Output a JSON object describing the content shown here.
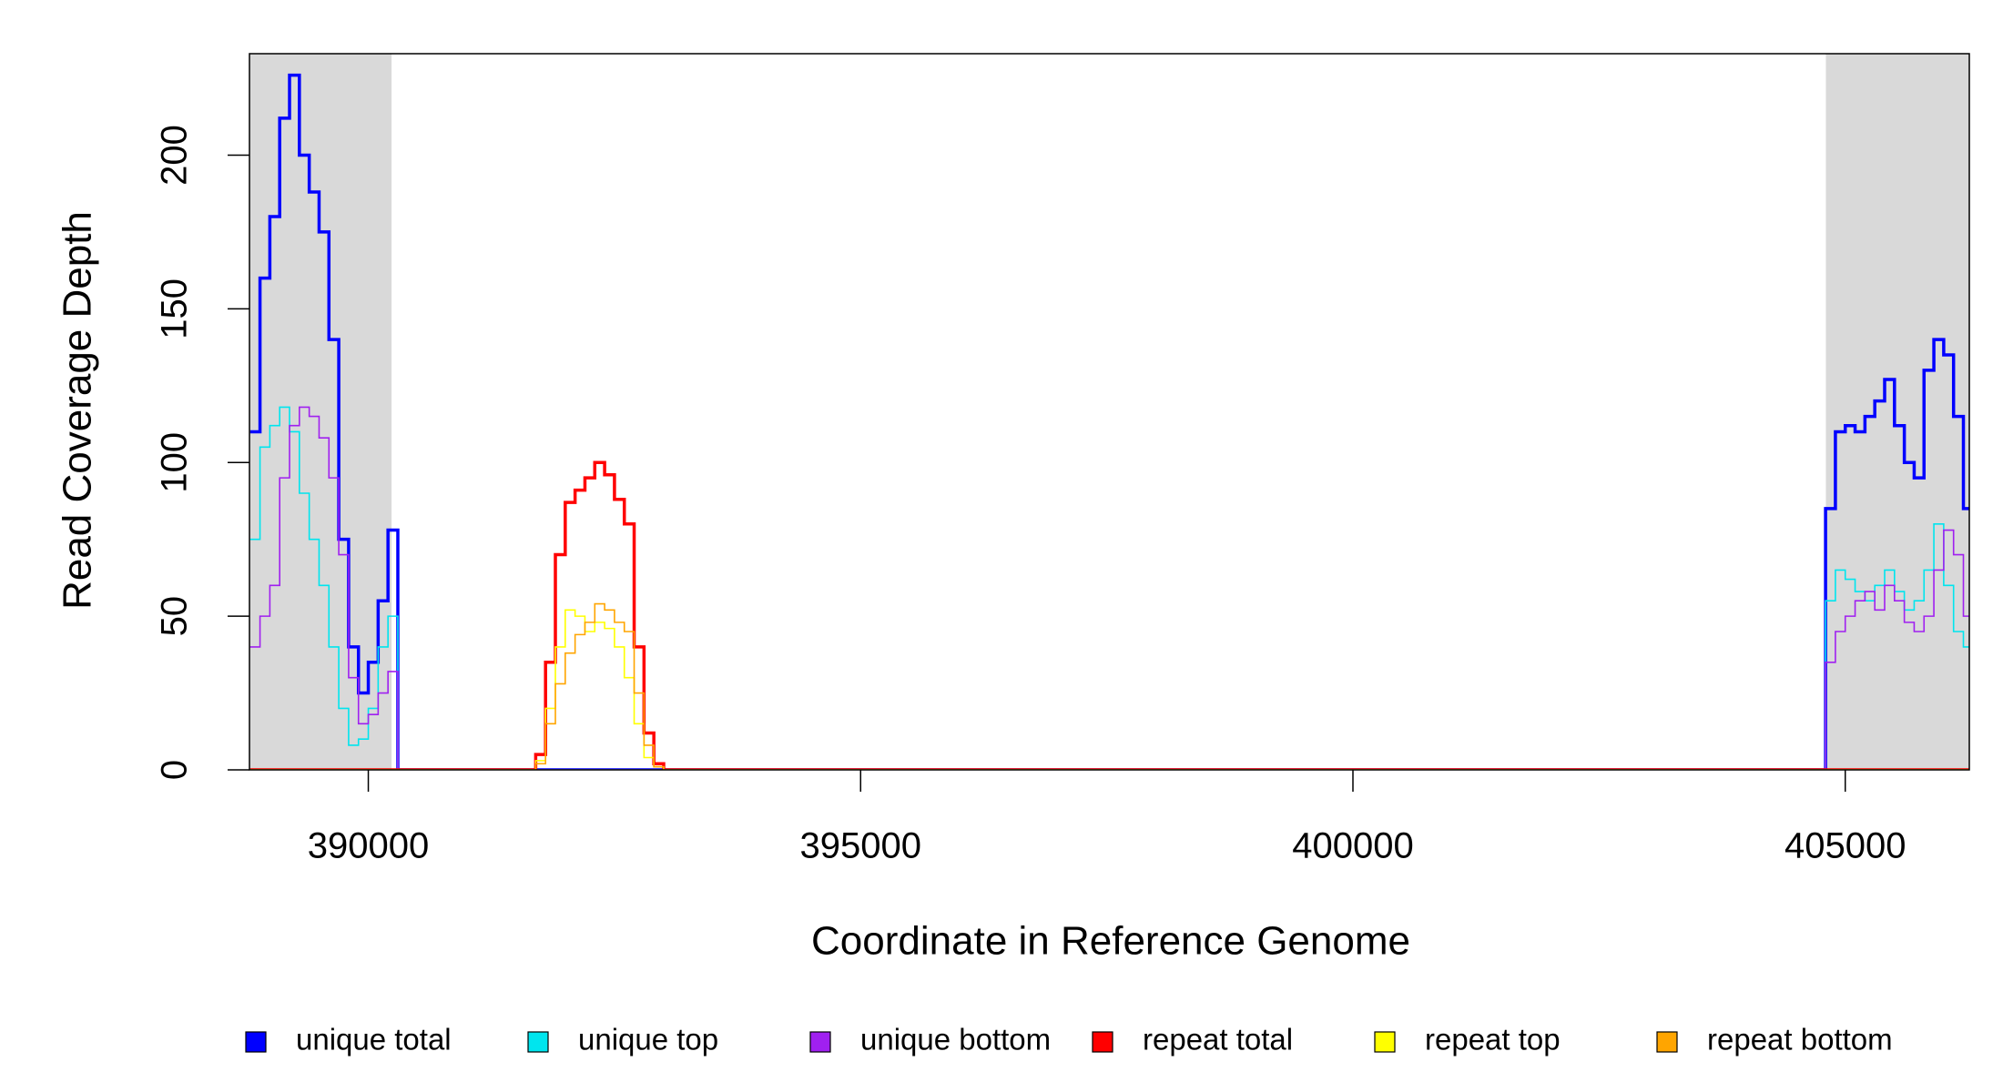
{
  "chart_data": {
    "type": "step",
    "xlabel": "Coordinate in Reference Genome",
    "ylabel": "Read Coverage Depth",
    "xlim": [
      388793,
      406260
    ],
    "ylim": [
      0,
      233
    ],
    "xticks": [
      390000,
      395000,
      400000,
      405000
    ],
    "yticks": [
      0,
      50,
      100,
      150,
      200
    ],
    "shaded_ranges": [
      [
        388793,
        390236
      ],
      [
        404803,
        406260
      ]
    ],
    "shade_color": "#d9d9d9",
    "legend": "bottom",
    "x": [
      388800,
      388900,
      389000,
      389100,
      389200,
      389300,
      389400,
      389500,
      389600,
      389700,
      389800,
      389900,
      390000,
      390100,
      390200,
      390300,
      391700,
      391800,
      391900,
      392000,
      392100,
      392200,
      392300,
      392400,
      392500,
      392600,
      392700,
      392800,
      392900,
      393000,
      393100,
      404800,
      404900,
      405000,
      405100,
      405200,
      405300,
      405400,
      405500,
      405600,
      405700,
      405800,
      405900,
      406000,
      406100,
      406200
    ],
    "series": [
      {
        "name": "unique total",
        "color": "#0000ff",
        "width": 3.5,
        "values": [
          110,
          160,
          180,
          212,
          226,
          200,
          188,
          175,
          140,
          75,
          40,
          25,
          35,
          55,
          78,
          0,
          0,
          0,
          0,
          0,
          0,
          0,
          0,
          0,
          0,
          0,
          0,
          0,
          0,
          0,
          0,
          85,
          110,
          112,
          110,
          115,
          120,
          127,
          112,
          100,
          95,
          130,
          140,
          135,
          115,
          85
        ]
      },
      {
        "name": "unique top",
        "color": "#00e5ee",
        "width": 1.6,
        "values": [
          75,
          105,
          112,
          118,
          110,
          90,
          75,
          60,
          40,
          20,
          8,
          10,
          20,
          40,
          50,
          0,
          0,
          0,
          0,
          0,
          0,
          0,
          0,
          0,
          0,
          0,
          0,
          0,
          0,
          0,
          0,
          55,
          65,
          62,
          58,
          55,
          60,
          65,
          58,
          52,
          55,
          65,
          80,
          60,
          45,
          40
        ]
      },
      {
        "name": "unique bottom",
        "color": "#a020f0",
        "width": 1.6,
        "values": [
          40,
          50,
          60,
          95,
          112,
          118,
          115,
          108,
          95,
          70,
          30,
          15,
          18,
          25,
          32,
          0,
          0,
          0,
          0,
          0,
          0,
          0,
          0,
          0,
          0,
          0,
          0,
          0,
          0,
          0,
          0,
          35,
          45,
          50,
          55,
          58,
          52,
          60,
          55,
          48,
          45,
          50,
          65,
          78,
          70,
          50
        ]
      },
      {
        "name": "repeat total",
        "color": "#ff0000",
        "width": 3.5,
        "values": [
          0,
          0,
          0,
          0,
          0,
          0,
          0,
          0,
          0,
          0,
          0,
          0,
          0,
          0,
          0,
          0,
          5,
          35,
          70,
          87,
          91,
          95,
          100,
          96,
          88,
          80,
          40,
          12,
          2,
          0,
          0,
          0,
          0,
          0,
          0,
          0,
          0,
          0,
          0,
          0,
          0,
          0,
          0,
          0,
          0,
          0
        ]
      },
      {
        "name": "repeat top",
        "color": "#ffff00",
        "width": 1.6,
        "values": [
          0,
          0,
          0,
          0,
          0,
          0,
          0,
          0,
          0,
          0,
          0,
          0,
          0,
          0,
          0,
          0,
          3,
          20,
          40,
          52,
          50,
          45,
          48,
          46,
          40,
          30,
          15,
          4,
          1,
          0,
          0,
          0,
          0,
          0,
          0,
          0,
          0,
          0,
          0,
          0,
          0,
          0,
          0,
          0,
          0,
          0
        ]
      },
      {
        "name": "repeat bottom",
        "color": "#ffa500",
        "width": 1.6,
        "values": [
          0,
          0,
          0,
          0,
          0,
          0,
          0,
          0,
          0,
          0,
          0,
          0,
          0,
          0,
          0,
          0,
          2,
          15,
          28,
          38,
          44,
          48,
          54,
          52,
          48,
          45,
          25,
          8,
          1,
          0,
          0,
          0,
          0,
          0,
          0,
          0,
          0,
          0,
          0,
          0,
          0,
          0,
          0,
          0,
          0,
          0
        ]
      }
    ]
  }
}
